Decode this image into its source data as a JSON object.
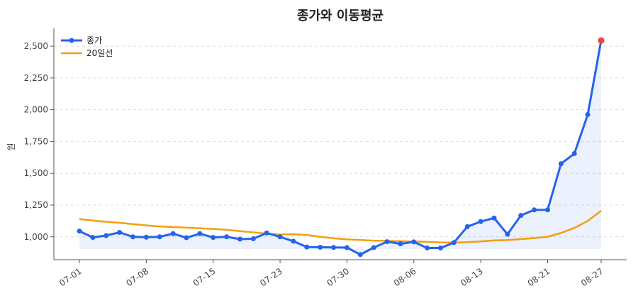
{
  "chart_data": {
    "type": "line",
    "title": "종가와 이동평균",
    "xlabel": "",
    "ylabel": "원",
    "ylim": [
      820,
      2640
    ],
    "yticks": [
      1000,
      1250,
      1500,
      1750,
      2000,
      2250,
      2500
    ],
    "ytick_labels": [
      "1,000",
      "1,250",
      "1,500",
      "1,750",
      "2,000",
      "2,250",
      "2,500"
    ],
    "xticks": [
      "07-01",
      "07-08",
      "07-15",
      "07-23",
      "07-30",
      "08-06",
      "08-13",
      "08-21",
      "08-27"
    ],
    "xtick_indices": [
      0,
      5,
      10,
      15,
      20,
      25,
      30,
      35,
      39
    ],
    "grid": true,
    "legend_position": "top-left",
    "highlight_last_point": true,
    "series": [
      {
        "name": "종가",
        "color": "#2563eb",
        "marker": "circle",
        "fill": true,
        "values": [
          1045,
          995,
          1010,
          1035,
          1000,
          997,
          1000,
          1025,
          993,
          1025,
          995,
          1000,
          982,
          985,
          1030,
          1000,
          965,
          920,
          918,
          916,
          915,
          860,
          915,
          962,
          945,
          960,
          912,
          912,
          955,
          1080,
          1120,
          1148,
          1020,
          1168,
          1212,
          1212,
          1575,
          1655,
          1962,
          2545
        ]
      },
      {
        "name": "20일선",
        "color": "#f59e0b",
        "marker": "none",
        "fill": false,
        "values": [
          1140,
          1128,
          1118,
          1110,
          1100,
          1090,
          1082,
          1077,
          1072,
          1067,
          1062,
          1055,
          1045,
          1035,
          1025,
          1018,
          1020,
          1015,
          1000,
          988,
          980,
          975,
          970,
          968,
          966,
          963,
          960,
          956,
          955,
          958,
          964,
          972,
          974,
          982,
          990,
          1000,
          1030,
          1070,
          1125,
          1205
        ]
      }
    ],
    "last_point_color": "#ef4444"
  }
}
